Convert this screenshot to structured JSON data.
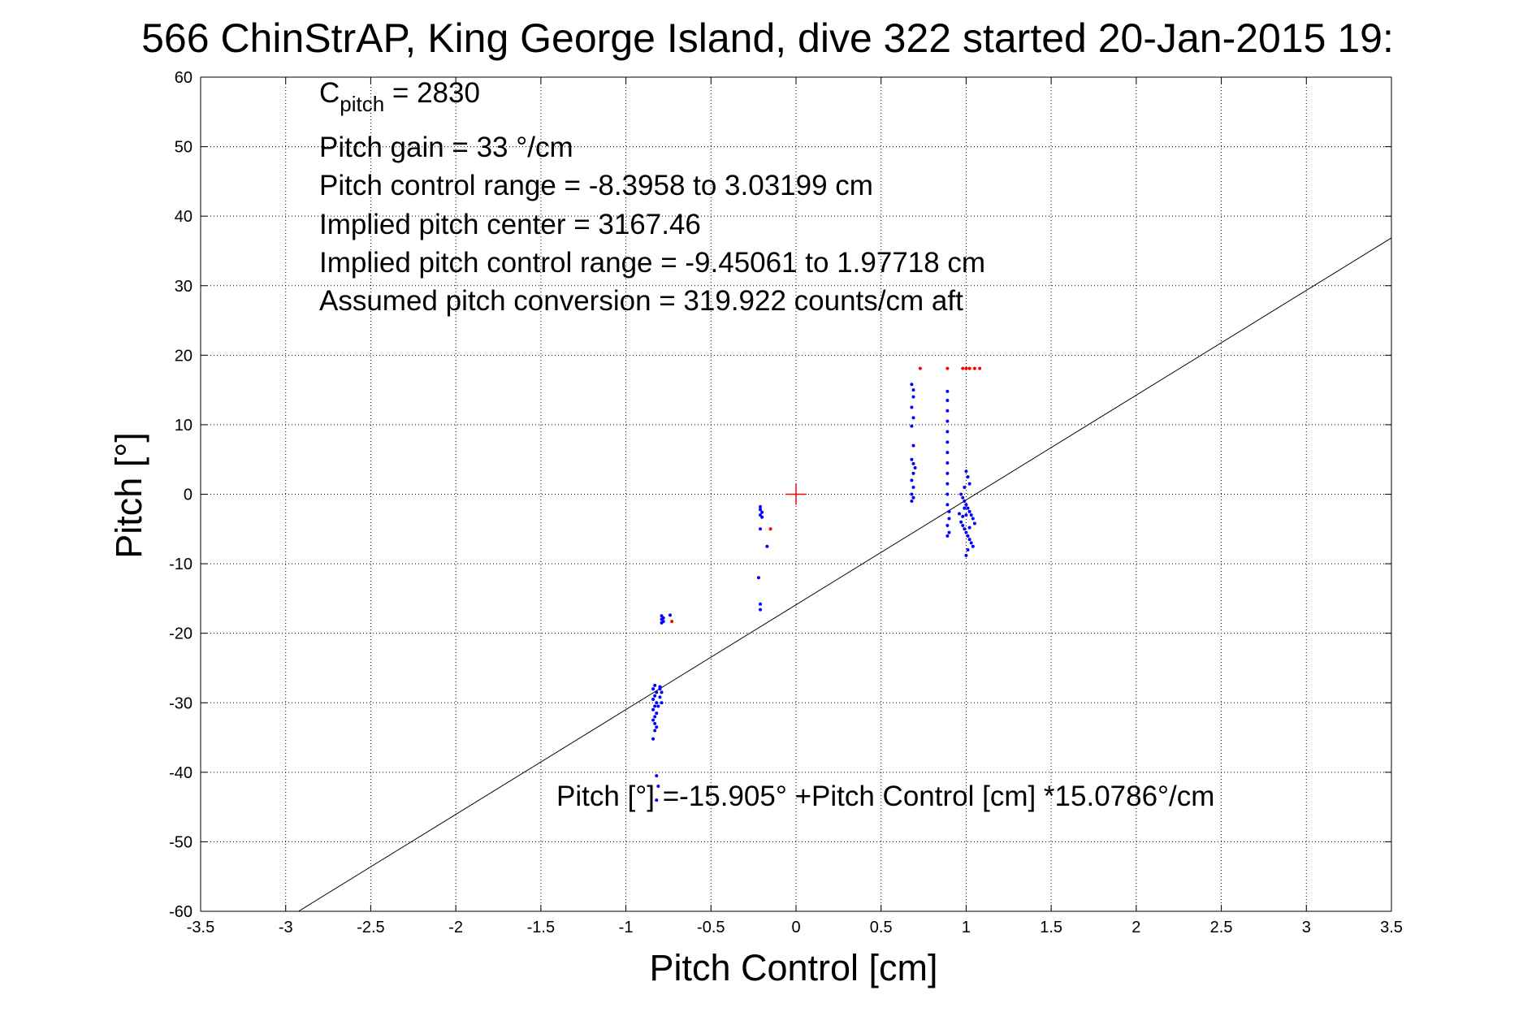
{
  "chart_data": {
    "type": "scatter",
    "title": "566 ChinStrAP, King George Island, dive 322 started 20-Jan-2015 19:",
    "xlabel": "Pitch Control [cm]",
    "ylabel": "Pitch [°]",
    "xlim": [
      -3.5,
      3.5
    ],
    "ylim": [
      -60,
      60
    ],
    "xticks": [
      -3.5,
      -3,
      -2.5,
      -2,
      -1.5,
      -1,
      -0.5,
      0,
      0.5,
      1,
      1.5,
      2,
      2.5,
      3,
      3.5
    ],
    "xtick_labels": [
      "-3.5",
      "-3",
      "-2.5",
      "-2",
      "-1.5",
      "-1",
      "-0.5",
      "0",
      "0.5",
      "1",
      "1.5",
      "2",
      "2.5",
      "3",
      "3.5"
    ],
    "yticks": [
      -60,
      -50,
      -40,
      -30,
      -20,
      -10,
      0,
      10,
      20,
      30,
      40,
      50,
      60
    ],
    "ytick_labels": [
      "-60",
      "-50",
      "-40",
      "-30",
      "-20",
      "-10",
      "0",
      "10",
      "20",
      "30",
      "40",
      "50",
      "60"
    ],
    "grid": true,
    "colors": {
      "blue": "#0000ff",
      "red": "#ff0000",
      "line": "#000000",
      "grid": "#000000"
    },
    "fit_line": {
      "intercept": -15.905,
      "slope": 15.0786
    },
    "center_marker": {
      "x": 0,
      "y": 0,
      "color": "#ff0000"
    },
    "annotations": {
      "c_pitch_main": "C",
      "c_pitch_sub": "pitch",
      "c_pitch_value": " = 2830",
      "gain": "Pitch gain = 33 °/cm",
      "range": "Pitch control range = -8.3958 to 3.03199 cm",
      "center": "Implied pitch center = 3167.46",
      "implied_range": "Implied pitch control range = -9.45061 to 1.97718 cm",
      "conversion": "Assumed pitch conversion = 319.922 counts/cm aft",
      "equation": "Pitch [°] =-15.905° +Pitch Control [cm] *15.0786°/cm"
    },
    "series": [
      {
        "color": "#0000ff",
        "points": [
          [
            -0.83,
            -27.5
          ],
          [
            -0.84,
            -28.0
          ],
          [
            -0.82,
            -28.5
          ],
          [
            -0.83,
            -29.0
          ],
          [
            -0.84,
            -29.5
          ],
          [
            -0.82,
            -30.0
          ],
          [
            -0.83,
            -30.5
          ],
          [
            -0.84,
            -31.0
          ],
          [
            -0.82,
            -31.5
          ],
          [
            -0.83,
            -32.0
          ],
          [
            -0.84,
            -32.5
          ],
          [
            -0.83,
            -33.0
          ],
          [
            -0.82,
            -33.5
          ],
          [
            -0.83,
            -34.0
          ],
          [
            -0.84,
            -35.2
          ],
          [
            -0.8,
            -28.0
          ],
          [
            -0.79,
            -28.5
          ],
          [
            -0.8,
            -29.2
          ],
          [
            -0.79,
            -30.0
          ],
          [
            -0.81,
            -30.5
          ],
          [
            -0.8,
            -27.7
          ],
          [
            -0.82,
            -40.5
          ],
          [
            -0.81,
            -42.0
          ],
          [
            -0.82,
            -44.0
          ],
          [
            -0.79,
            -17.5
          ],
          [
            -0.78,
            -17.8
          ],
          [
            -0.79,
            -18.0
          ],
          [
            -0.78,
            -18.3
          ],
          [
            -0.79,
            -18.5
          ],
          [
            -0.74,
            -17.4
          ],
          [
            -0.21,
            -1.8
          ],
          [
            -0.21,
            -2.2
          ],
          [
            -0.2,
            -2.6
          ],
          [
            -0.21,
            -3.0
          ],
          [
            -0.2,
            -3.3
          ],
          [
            -0.21,
            -5.0
          ],
          [
            -0.17,
            -7.5
          ],
          [
            -0.22,
            -12.0
          ],
          [
            -0.21,
            -15.8
          ],
          [
            -0.21,
            -16.6
          ],
          [
            0.68,
            15.8
          ],
          [
            0.69,
            15.0
          ],
          [
            0.69,
            14.0
          ],
          [
            0.68,
            12.5
          ],
          [
            0.69,
            11.0
          ],
          [
            0.68,
            9.8
          ],
          [
            0.69,
            7.0
          ],
          [
            0.68,
            5.0
          ],
          [
            0.69,
            4.4
          ],
          [
            0.7,
            3.8
          ],
          [
            0.69,
            3.0
          ],
          [
            0.68,
            2.0
          ],
          [
            0.69,
            1.0
          ],
          [
            0.68,
            0.0
          ],
          [
            0.69,
            -0.5
          ],
          [
            0.68,
            -1.0
          ],
          [
            0.89,
            14.8
          ],
          [
            0.89,
            13.5
          ],
          [
            0.89,
            12.0
          ],
          [
            0.89,
            10.5
          ],
          [
            0.89,
            9.0
          ],
          [
            0.89,
            7.5
          ],
          [
            0.89,
            6.0
          ],
          [
            0.89,
            4.5
          ],
          [
            0.89,
            3.0
          ],
          [
            0.89,
            1.5
          ],
          [
            0.89,
            0.0
          ],
          [
            0.89,
            -1.5
          ],
          [
            0.9,
            -2.5
          ],
          [
            0.9,
            -3.5
          ],
          [
            0.89,
            -4.5
          ],
          [
            0.9,
            -5.5
          ],
          [
            0.89,
            -6.0
          ],
          [
            0.97,
            0.0
          ],
          [
            0.98,
            -0.5
          ],
          [
            0.99,
            -1.0
          ],
          [
            1.0,
            -1.5
          ],
          [
            1.01,
            -2.0
          ],
          [
            1.02,
            -2.5
          ],
          [
            1.03,
            -3.0
          ],
          [
            1.04,
            -3.5
          ],
          [
            0.97,
            -4.0
          ],
          [
            0.98,
            -4.5
          ],
          [
            0.99,
            -5.0
          ],
          [
            1.0,
            -5.5
          ],
          [
            1.01,
            -6.0
          ],
          [
            1.02,
            -6.5
          ],
          [
            1.03,
            -7.0
          ],
          [
            1.04,
            -7.5
          ],
          [
            1.0,
            3.3
          ],
          [
            1.01,
            2.5
          ],
          [
            1.02,
            1.5
          ],
          [
            0.99,
            1.0
          ],
          [
            1.0,
            -8.8
          ],
          [
            1.01,
            -8.0
          ],
          [
            0.96,
            -2.8
          ],
          [
            1.05,
            -4.2
          ],
          [
            0.98,
            -3.2
          ],
          [
            1.02,
            -4.8
          ],
          [
            1.0,
            -3.0
          ],
          [
            0.99,
            -2.0
          ]
        ]
      },
      {
        "color": "#ff0000",
        "points": [
          [
            -0.73,
            -18.3
          ],
          [
            -0.15,
            -5.0
          ],
          [
            0.73,
            18.1
          ],
          [
            0.89,
            18.1
          ],
          [
            0.98,
            18.1
          ],
          [
            1.0,
            18.1
          ],
          [
            1.02,
            18.1
          ],
          [
            1.05,
            18.1
          ],
          [
            1.08,
            18.1
          ]
        ]
      }
    ]
  }
}
